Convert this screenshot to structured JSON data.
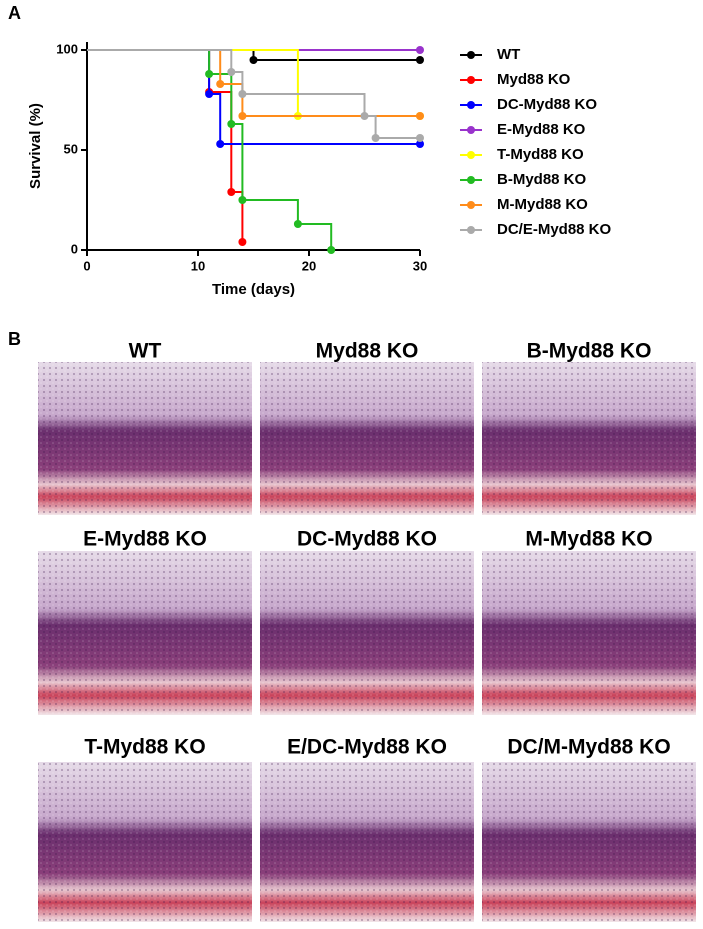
{
  "panel_a": {
    "label": "A",
    "chart_data": {
      "type": "step",
      "xlabel": "Time (days)",
      "ylabel": "Survival (%)",
      "xlim": [
        0,
        30
      ],
      "ylim": [
        0,
        104
      ],
      "xticks": [
        0,
        10,
        20,
        30
      ],
      "yticks": [
        0,
        50,
        100
      ],
      "series": [
        {
          "name": "WT",
          "color": "#000000",
          "x": [
            0,
            15,
            30
          ],
          "values": [
            100,
            95,
            95
          ]
        },
        {
          "name": "Myd88 KO",
          "color": "#ff0000",
          "x": [
            0,
            11,
            13,
            14
          ],
          "values": [
            100,
            79,
            29,
            4
          ]
        },
        {
          "name": "DC-Myd88 KO",
          "color": "#0000ff",
          "x": [
            0,
            11,
            12,
            30
          ],
          "values": [
            100,
            78,
            53,
            53
          ]
        },
        {
          "name": "E-Myd88 KO",
          "color": "#9933cc",
          "x": [
            0,
            30
          ],
          "values": [
            100,
            100
          ]
        },
        {
          "name": "T-Myd88 KO",
          "color": "#ffff00",
          "x": [
            0,
            19,
            30
          ],
          "values": [
            100,
            67,
            67
          ]
        },
        {
          "name": "B-Myd88 KO",
          "color": "#22bb22",
          "x": [
            0,
            11,
            13,
            14,
            19,
            22
          ],
          "values": [
            100,
            88,
            63,
            25,
            13,
            0
          ]
        },
        {
          "name": "M-Myd88 KO",
          "color": "#ff8c1a",
          "x": [
            0,
            12,
            14,
            30
          ],
          "values": [
            100,
            83,
            67,
            67
          ]
        },
        {
          "name": "DC/E-Myd88 KO",
          "color": "#aaaaaa",
          "x": [
            0,
            13,
            14,
            25,
            26,
            30
          ],
          "values": [
            100,
            89,
            78,
            67,
            56,
            56
          ]
        }
      ]
    }
  },
  "panel_b": {
    "label": "B",
    "images": [
      {
        "title": "WT"
      },
      {
        "title": "Myd88 KO"
      },
      {
        "title": "B-Myd88 KO"
      },
      {
        "title": "E-Myd88 KO"
      },
      {
        "title": "DC-Myd88 KO"
      },
      {
        "title": "M-Myd88 KO"
      },
      {
        "title": "T-Myd88 KO"
      },
      {
        "title": "E/DC-Myd88 KO"
      },
      {
        "title": "DC/M-Myd88 KO"
      }
    ]
  }
}
